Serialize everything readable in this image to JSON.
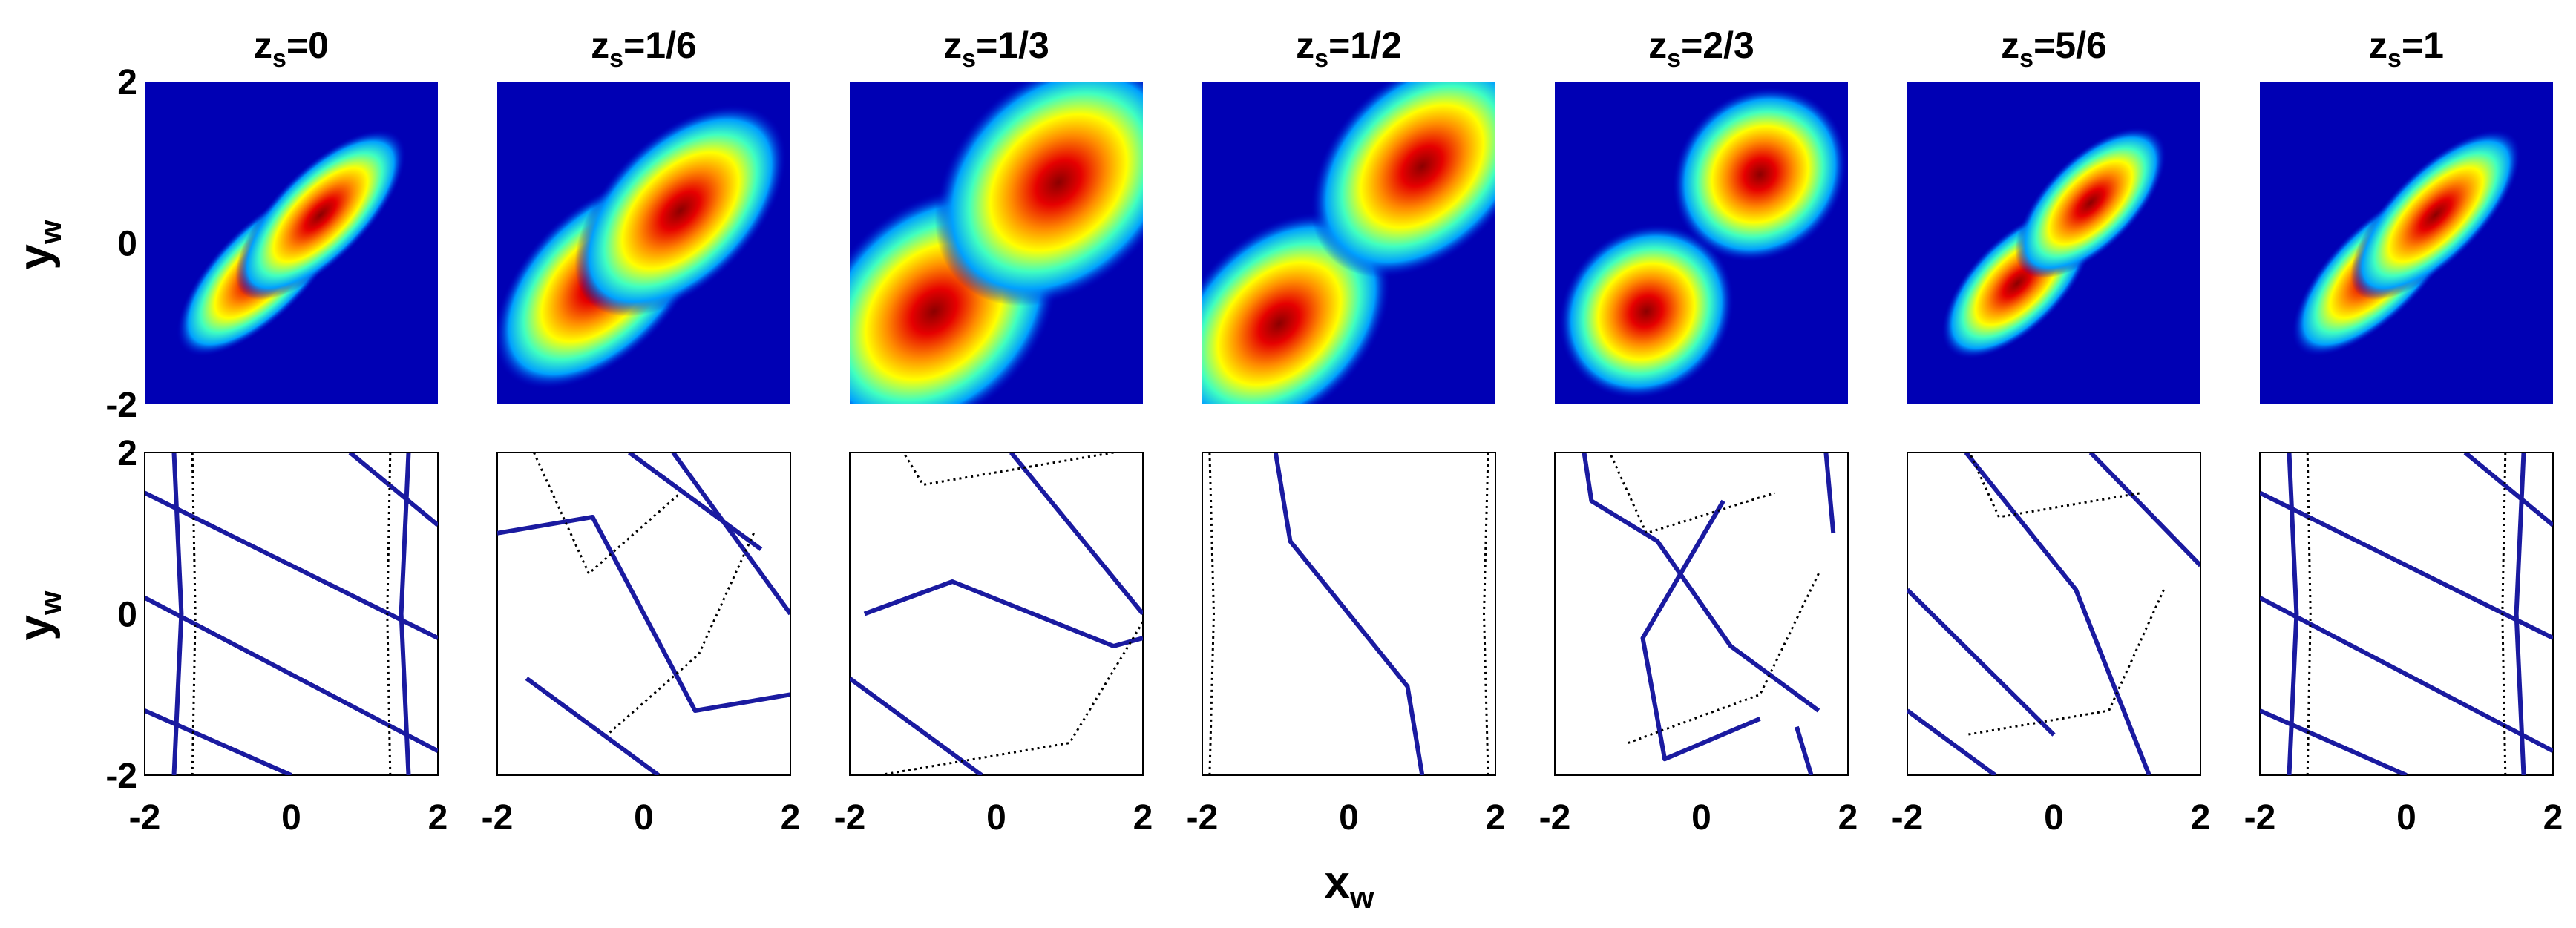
{
  "chart_data": {
    "type": "heatmap",
    "description_rows": [
      "intensity",
      "phase-contours"
    ],
    "panel_titles": [
      {
        "base": "z",
        "sub": "s",
        "value": "=0"
      },
      {
        "base": "z",
        "sub": "s",
        "value": "=1/6"
      },
      {
        "base": "z",
        "sub": "s",
        "value": "=1/3"
      },
      {
        "base": "z",
        "sub": "s",
        "value": "=1/2"
      },
      {
        "base": "z",
        "sub": "s",
        "value": "=2/3"
      },
      {
        "base": "z",
        "sub": "s",
        "value": "=5/6"
      },
      {
        "base": "z",
        "sub": "s",
        "value": "=1"
      }
    ],
    "xlabel": {
      "base": "x",
      "sub": "w"
    },
    "ylabel": {
      "base": "y",
      "sub": "w"
    },
    "xlim": [
      -2,
      2
    ],
    "ylim": [
      -2,
      2
    ],
    "xticks": [
      "-2",
      "0",
      "2"
    ],
    "yticks": [
      "2",
      "0",
      "-2"
    ],
    "colormap": "jet",
    "contour_colors": {
      "solid": "#1a1aa0",
      "dotted": "#000000"
    },
    "intensity_panels": [
      {
        "lobes": [
          {
            "x": -0.4,
            "y": -0.35
          },
          {
            "x": 0.4,
            "y": 0.35
          }
        ]
      },
      {
        "lobes": [
          {
            "x": -0.6,
            "y": -0.5
          },
          {
            "x": 0.5,
            "y": 0.4
          }
        ]
      },
      {
        "lobes": [
          {
            "x": -0.85,
            "y": -0.85
          },
          {
            "x": 0.85,
            "y": 0.75
          }
        ]
      },
      {
        "lobes": [
          {
            "x": -0.95,
            "y": -1.0
          },
          {
            "x": 1.0,
            "y": 0.95
          }
        ]
      },
      {
        "lobes": [
          {
            "x": -0.75,
            "y": -0.85
          },
          {
            "x": 0.8,
            "y": 0.85
          }
        ]
      },
      {
        "lobes": [
          {
            "x": -0.5,
            "y": -0.5
          },
          {
            "x": 0.5,
            "y": 0.5
          }
        ]
      },
      {
        "lobes": [
          {
            "x": -0.4,
            "y": -0.35
          },
          {
            "x": 0.4,
            "y": 0.35
          }
        ]
      }
    ]
  }
}
